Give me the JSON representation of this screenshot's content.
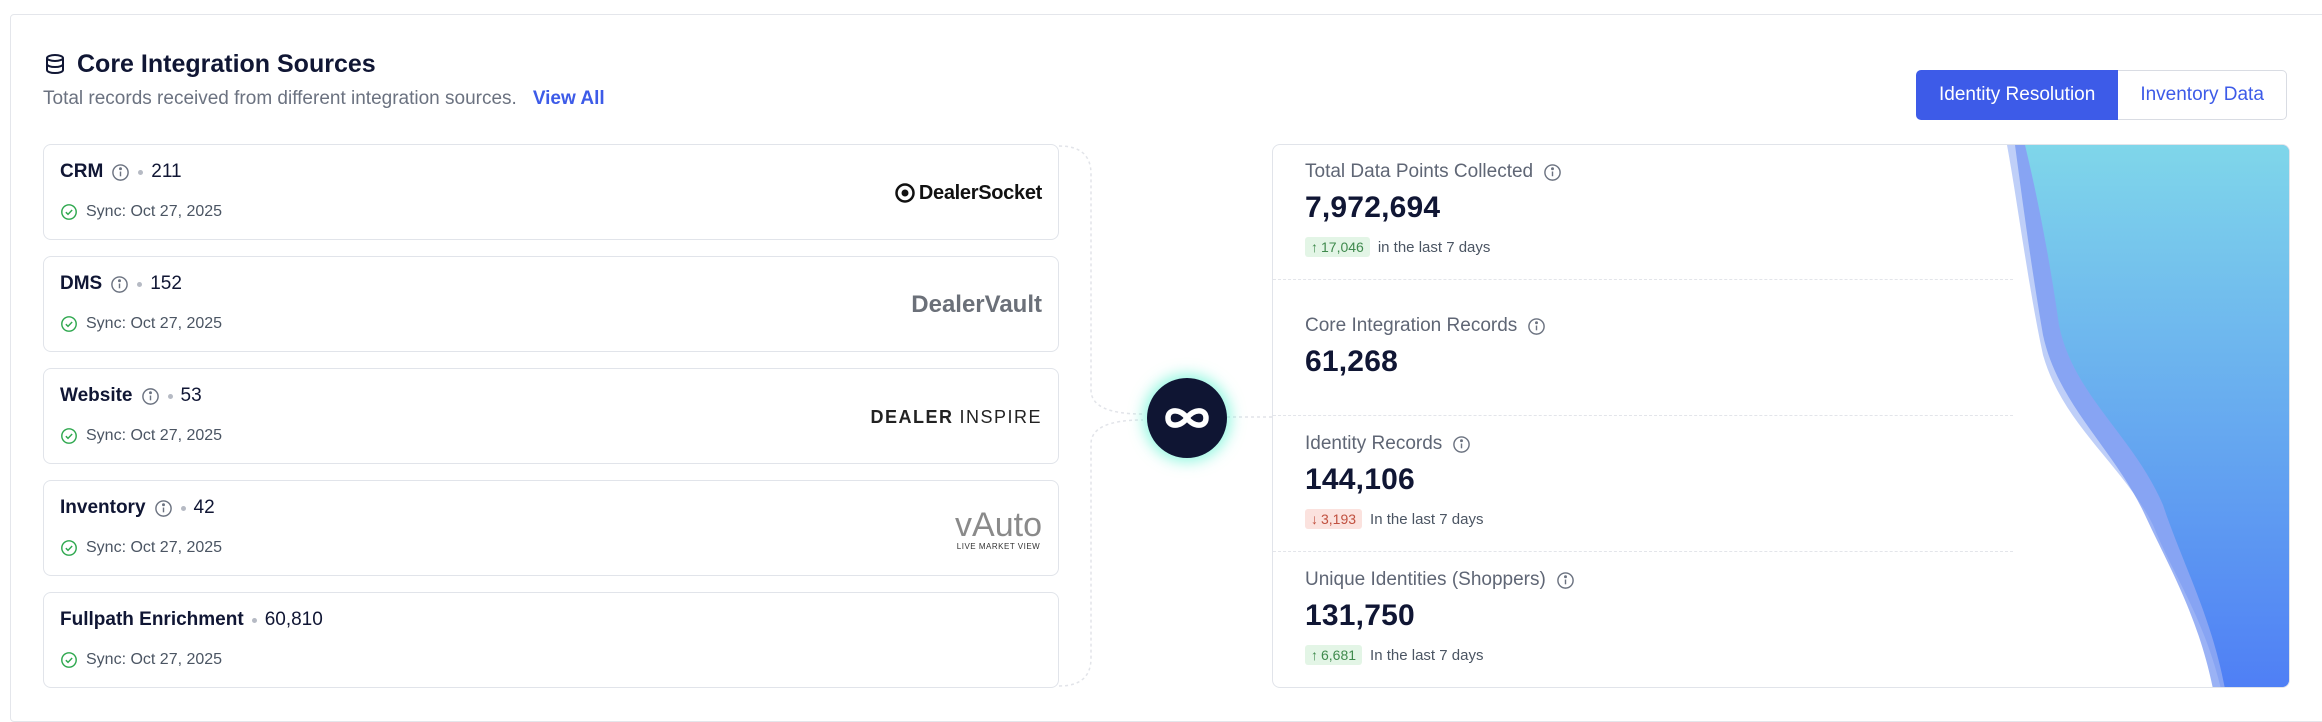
{
  "header": {
    "title": "Core Integration Sources",
    "subtitle": "Total records received from different integration sources.",
    "view_all": "View All"
  },
  "tabs": [
    {
      "label": "Identity Resolution",
      "active": true
    },
    {
      "label": "Inventory Data",
      "active": false
    }
  ],
  "sources": [
    {
      "name": "CRM",
      "count": "211",
      "sync": "Sync: Oct 27, 2025",
      "logo_text": "DealerSocket"
    },
    {
      "name": "DMS",
      "count": "152",
      "sync": "Sync: Oct 27, 2025",
      "logo_text": "DealerVault"
    },
    {
      "name": "Website",
      "count": "53",
      "sync": "Sync: Oct 27, 2025",
      "logo_text_a": "DEALER",
      "logo_text_b": "INSPIRE"
    },
    {
      "name": "Inventory",
      "count": "42",
      "sync": "Sync: Oct 27, 2025",
      "logo_text_a": "vAuto",
      "logo_text_b": "LIVE MARKET VIEW"
    },
    {
      "name": "Fullpath Enrichment",
      "count": "60,810",
      "sync": "Sync: Oct 27, 2025"
    }
  ],
  "stats": [
    {
      "label": "Total Data Points Collected",
      "value": "7,972,694",
      "change": "17,046",
      "direction": "up",
      "period": "in the last 7 days"
    },
    {
      "label": "Core Integration Records",
      "value": "61,268"
    },
    {
      "label": "Identity Records",
      "value": "144,106",
      "change": "3,193",
      "direction": "down",
      "period": "In the last 7 days"
    },
    {
      "label": "Unique Identities (Shoppers)",
      "value": "131,750",
      "change": "6,681",
      "direction": "up",
      "period": "In the last 7 days"
    }
  ],
  "colors": {
    "accent": "#3d5be8",
    "hub": "#0f1533",
    "hub_glow": "#3ef0c8",
    "sync_ok": "#2fa84f",
    "funnel_start": "#7fd6ea",
    "funnel_end": "#4f7ff5"
  },
  "icons": {
    "title": "database-icon",
    "info": "info-icon",
    "sync": "check-circle-icon",
    "hub": "infinity-icon"
  }
}
